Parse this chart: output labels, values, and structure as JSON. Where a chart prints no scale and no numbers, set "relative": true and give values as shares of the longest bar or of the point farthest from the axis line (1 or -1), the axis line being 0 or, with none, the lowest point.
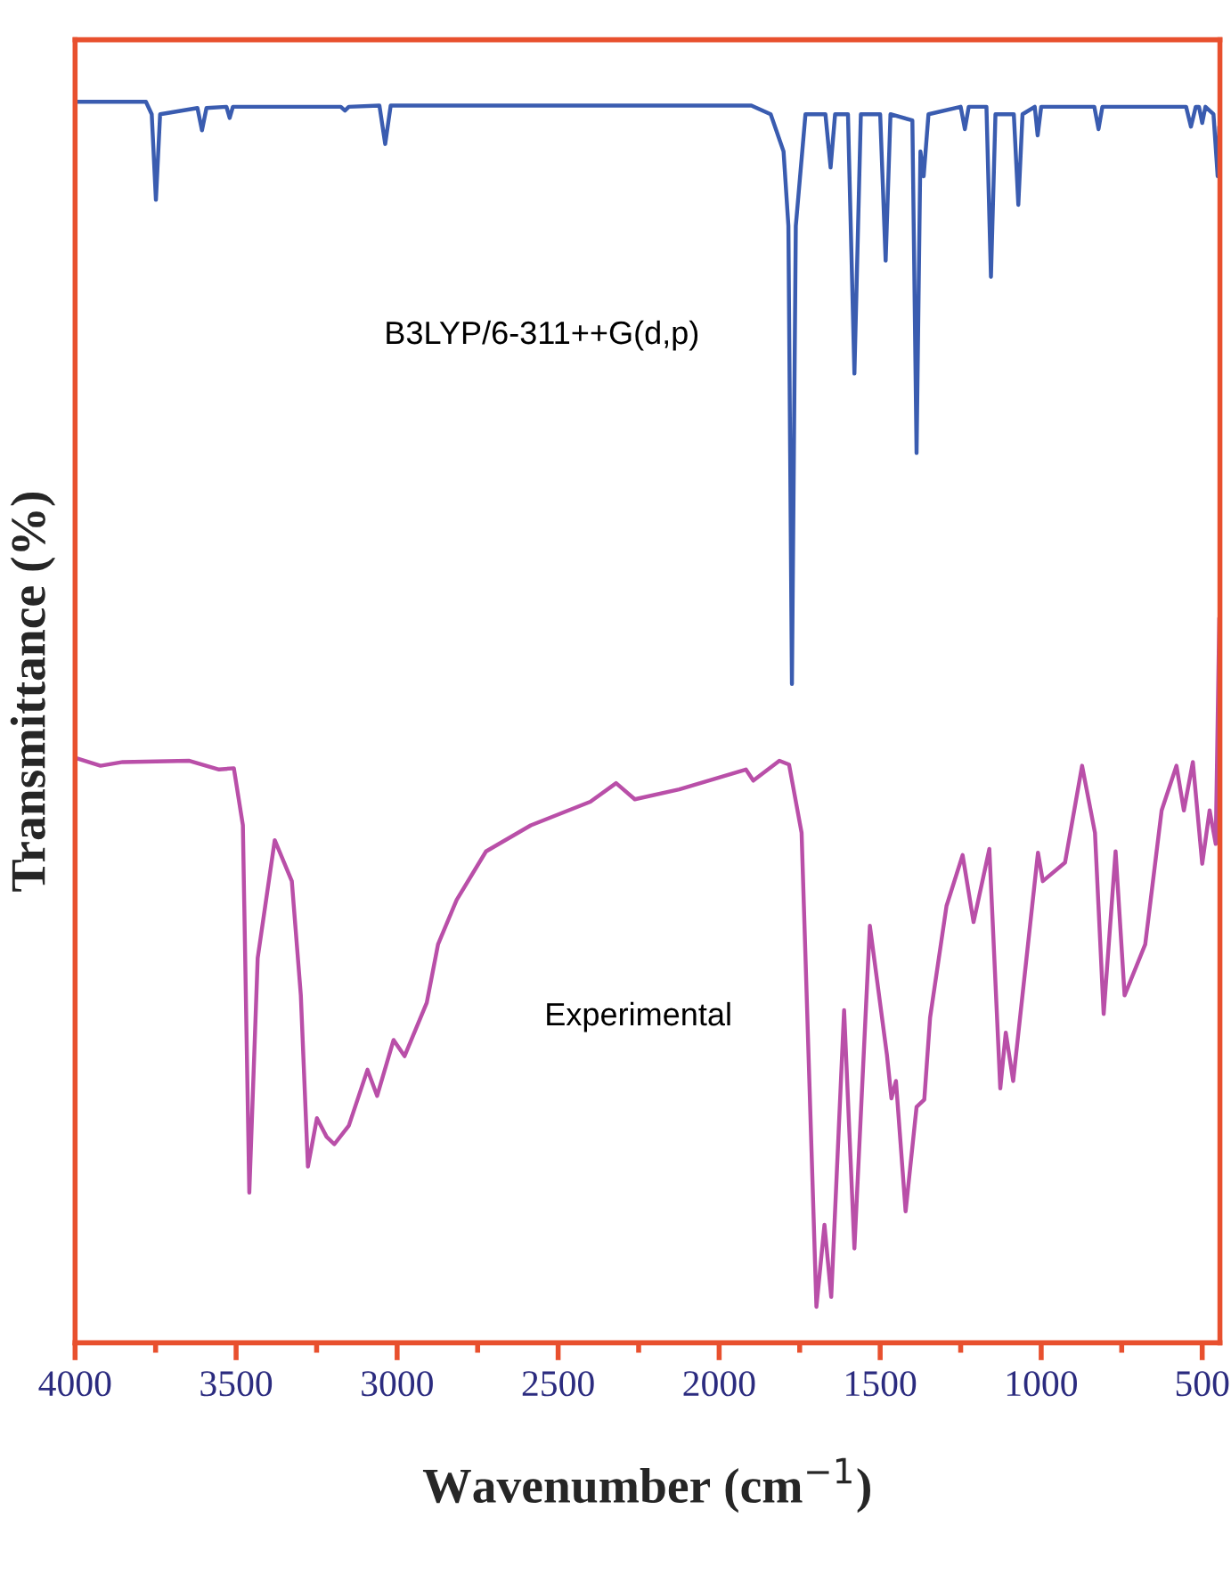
{
  "chart_data": {
    "type": "line",
    "relative": true,
    "xlabel": "Wavenumber (cm$^{−1}$)",
    "ylabel": "Transmittance (%)",
    "xlim": [
      4000,
      445
    ],
    "xticks": [
      4000,
      {
        "value": 3750,
        "label": null
      },
      3500,
      {
        "value": 3250,
        "label": null
      },
      3000,
      {
        "value": 2750,
        "label": null
      },
      2500,
      {
        "value": 2250,
        "label": null
      },
      2000,
      {
        "value": 1750,
        "label": null
      },
      1500,
      {
        "value": 1250,
        "label": null
      },
      1000,
      {
        "value": 750,
        "label": null
      },
      500
    ],
    "grid": false,
    "legend": false,
    "marker": "none",
    "line_style": "solid",
    "series": [
      {
        "name": "B3LYP/6-311++G(d,p)",
        "color": "#3a5cb0",
        "x": [
          4000,
          3780,
          3762,
          3749,
          3736,
          3620,
          3606,
          3592,
          3530,
          3520,
          3510,
          3175,
          3162,
          3150,
          3055,
          3037,
          3020,
          1900,
          1840,
          1800,
          1785,
          1774,
          1762,
          1732,
          1670,
          1654,
          1640,
          1600,
          1580,
          1560,
          1500,
          1483,
          1468,
          1400,
          1387,
          1375,
          1365,
          1350,
          1250,
          1237,
          1225,
          1170,
          1156,
          1142,
          1085,
          1071,
          1058,
          1020,
          1011,
          1000,
          835,
          822,
          810,
          550,
          535,
          520,
          510,
          500,
          490,
          465,
          452,
          447
        ],
        "values": [
          1.0,
          1.0,
          0.99,
          0.921,
          0.99,
          0.995,
          0.977,
          0.995,
          0.996,
          0.987,
          0.996,
          0.996,
          0.993,
          0.996,
          0.997,
          0.966,
          0.997,
          0.997,
          0.99,
          0.96,
          0.9,
          0.531,
          0.9,
          0.99,
          0.99,
          0.947,
          0.99,
          0.99,
          0.781,
          0.99,
          0.99,
          0.872,
          0.99,
          0.985,
          0.717,
          0.96,
          0.94,
          0.99,
          0.996,
          0.978,
          0.996,
          0.996,
          0.859,
          0.99,
          0.99,
          0.917,
          0.99,
          0.996,
          0.973,
          0.996,
          0.996,
          0.978,
          0.996,
          0.996,
          0.98,
          0.996,
          0.996,
          0.983,
          0.996,
          0.99,
          0.94,
          0.98
        ]
      },
      {
        "name": "Experimental",
        "color": "#b94fa8",
        "x": [
          3996,
          3921,
          3852,
          3645,
          3553,
          3507,
          3479,
          3459,
          3433,
          3380,
          3327,
          3299,
          3277,
          3249,
          3219,
          3195,
          3150,
          3092,
          3062,
          3011,
          2977,
          2908,
          2873,
          2815,
          2724,
          2585,
          2400,
          2320,
          2262,
          2124,
          1917,
          1894,
          1813,
          1783,
          1744,
          1698,
          1673,
          1652,
          1612,
          1580,
          1532,
          1479,
          1465,
          1451,
          1421,
          1387,
          1363,
          1345,
          1294,
          1244,
          1210,
          1161,
          1127,
          1110,
          1087,
          1041,
          1010,
          995,
          926,
          873,
          833,
          806,
          769,
          741,
          677,
          626,
          580,
          557,
          529,
          500,
          477,
          458,
          447
        ],
        "values": [
          0.471,
          0.465,
          0.468,
          0.469,
          0.462,
          0.463,
          0.417,
          0.121,
          0.31,
          0.405,
          0.372,
          0.28,
          0.142,
          0.181,
          0.166,
          0.16,
          0.175,
          0.22,
          0.199,
          0.244,
          0.231,
          0.274,
          0.321,
          0.357,
          0.396,
          0.417,
          0.436,
          0.451,
          0.438,
          0.446,
          0.462,
          0.453,
          0.469,
          0.466,
          0.411,
          0.029,
          0.095,
          0.037,
          0.268,
          0.076,
          0.336,
          0.232,
          0.197,
          0.211,
          0.106,
          0.19,
          0.196,
          0.262,
          0.352,
          0.393,
          0.339,
          0.398,
          0.205,
          0.25,
          0.211,
          0.321,
          0.395,
          0.372,
          0.387,
          0.465,
          0.411,
          0.265,
          0.396,
          0.28,
          0.321,
          0.429,
          0.465,
          0.429,
          0.468,
          0.386,
          0.429,
          0.402,
          0.584
        ]
      }
    ]
  }
}
